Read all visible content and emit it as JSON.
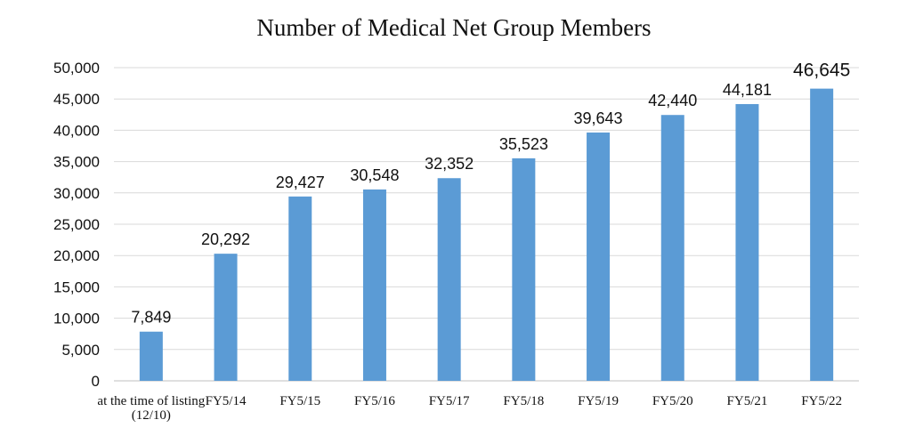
{
  "chart_data": {
    "type": "bar",
    "title": "Number of Medical Net Group Members",
    "categories": [
      [
        "at the time of listing",
        "(12/10)"
      ],
      [
        "FY5/14"
      ],
      [
        "FY5/15"
      ],
      [
        "FY5/16"
      ],
      [
        "FY5/17"
      ],
      [
        "FY5/18"
      ],
      [
        "FY5/19"
      ],
      [
        "FY5/20"
      ],
      [
        "FY5/21"
      ],
      [
        "FY5/22"
      ]
    ],
    "values": [
      7849,
      20292,
      29427,
      30548,
      32352,
      35523,
      39643,
      42440,
      44181,
      46645
    ],
    "data_labels": [
      "7,849",
      "20,292",
      "29,427",
      "30,548",
      "32,352",
      "35,523",
      "39,643",
      "42,440",
      "44,181",
      "46,645"
    ],
    "ylim": [
      0,
      50000
    ],
    "yticks": [
      0,
      5000,
      10000,
      15000,
      20000,
      25000,
      30000,
      35000,
      40000,
      45000,
      50000
    ],
    "ytick_labels": [
      "0",
      "5,000",
      "10,000",
      "15,000",
      "20,000",
      "25,000",
      "30,000",
      "35,000",
      "40,000",
      "45,000",
      "50,000"
    ],
    "xlabel": "",
    "ylabel": "",
    "grid": true,
    "bar_color": "#5b9bd5"
  }
}
